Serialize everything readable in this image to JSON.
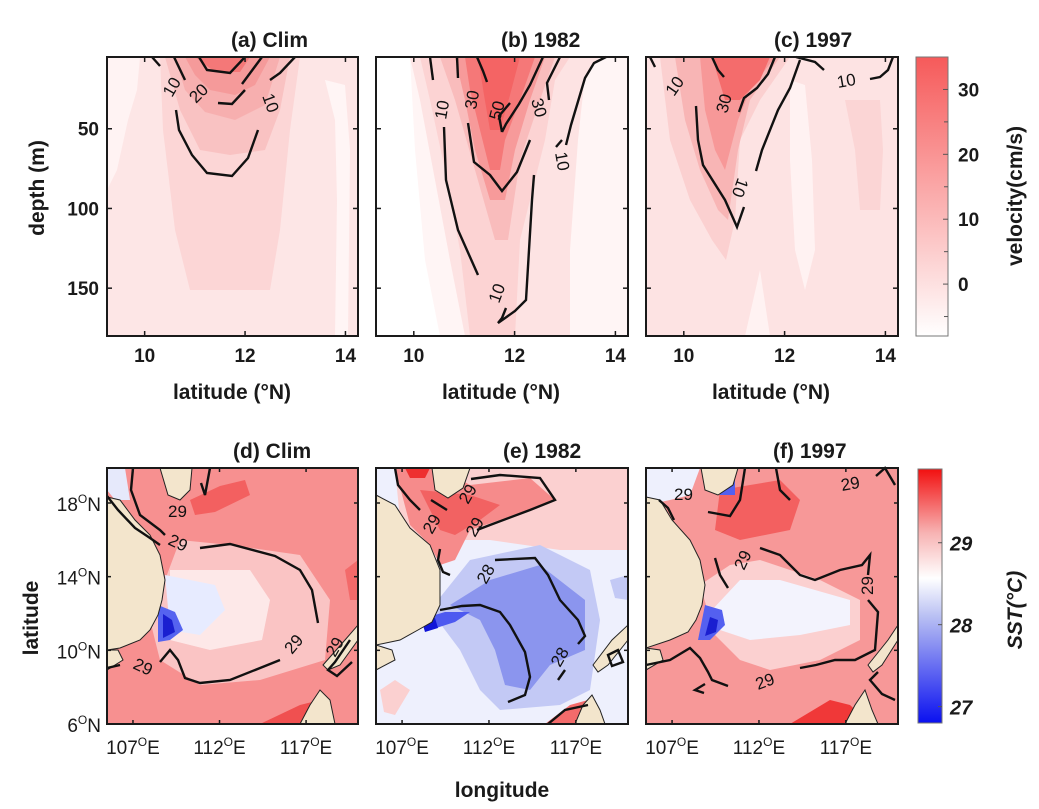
{
  "chart_data": [
    {
      "type": "heatmap",
      "panel": "a",
      "title": "(a) Clim",
      "xlabel": "latitude (°N)",
      "ylabel": "depth (m)",
      "xlim": [
        9.25,
        14.25
      ],
      "ylim": [
        180,
        5
      ],
      "xticks": [
        "10",
        "12",
        "14"
      ],
      "yticks": [
        "50",
        "100",
        "150"
      ],
      "variable": "velocity(cm/s)",
      "contour_levels": [
        10,
        20
      ],
      "contour_labels": [
        "10",
        "20",
        "10"
      ],
      "max_core": {
        "latitude": 11.6,
        "depth": 5,
        "value": 25
      }
    },
    {
      "type": "heatmap",
      "panel": "b",
      "title": "(b) 1982",
      "xlabel": "latitude (°N)",
      "xlim": [
        9.25,
        14.25
      ],
      "ylim": [
        180,
        5
      ],
      "xticks": [
        "10",
        "12",
        "14"
      ],
      "variable": "velocity(cm/s)",
      "contour_levels": [
        10,
        30,
        50
      ],
      "contour_labels": [
        "10",
        "30",
        "50",
        "30",
        "10",
        "10"
      ],
      "max_core": {
        "latitude": 11.8,
        "depth": 40,
        "value": 55
      }
    },
    {
      "type": "heatmap",
      "panel": "c",
      "title": "(c) 1997",
      "xlabel": "latitude (°N)",
      "xlim": [
        9.25,
        14.25
      ],
      "ylim": [
        180,
        5
      ],
      "xticks": [
        "10",
        "12",
        "14"
      ],
      "variable": "velocity(cm/s)",
      "contour_levels": [
        10,
        30
      ],
      "contour_labels": [
        "10",
        "30",
        "10",
        "10"
      ],
      "max_core": {
        "latitude": 10.8,
        "depth": 15,
        "value": 35
      }
    },
    {
      "type": "heatmap",
      "panel": "d",
      "title": "(d) Clim",
      "xlabel": "",
      "ylabel": "latitude",
      "xlim": [
        105.5,
        120
      ],
      "ylim": [
        6,
        19.9
      ],
      "xticks": [
        "107",
        "112",
        "117"
      ],
      "yticks": [
        "18",
        "14",
        "10",
        "6"
      ],
      "variable": "SST(°C)",
      "contour_levels": [
        29
      ],
      "contour_labels": [
        "29",
        "29",
        "29",
        "29",
        "29"
      ]
    },
    {
      "type": "heatmap",
      "panel": "e",
      "title": "(e) 1982",
      "xlabel": "longitude",
      "xlim": [
        105.5,
        120
      ],
      "ylim": [
        6,
        19.9
      ],
      "xticks": [
        "107",
        "112",
        "117"
      ],
      "variable": "SST(°C)",
      "contour_levels": [
        28,
        29
      ],
      "contour_labels": [
        "29",
        "29",
        "29",
        "28",
        "28"
      ]
    },
    {
      "type": "heatmap",
      "panel": "f",
      "title": "(f) 1997",
      "xlabel": "",
      "xlim": [
        105.5,
        120
      ],
      "ylim": [
        6,
        19.9
      ],
      "xticks": [
        "107",
        "112",
        "117"
      ],
      "variable": "SST(°C)",
      "contour_levels": [
        29
      ],
      "contour_labels": [
        "29",
        "29",
        "29",
        "29",
        "29"
      ]
    }
  ],
  "colorbars": {
    "velocity": {
      "label": "velocity(cm/s)",
      "range": [
        -8,
        35
      ],
      "ticks": [
        "30",
        "20",
        "10",
        "0"
      ],
      "tick_values": [
        30,
        20,
        10,
        0
      ],
      "minor_tick_values": [
        25,
        15,
        5,
        -5
      ],
      "color_low": "#ffffff",
      "color_high": "#f65a5a"
    },
    "sst": {
      "label": "SST(°C)",
      "range": [
        26.8,
        29.9
      ],
      "ticks": [
        "29",
        "28",
        "27"
      ],
      "tick_values": [
        29,
        28,
        27
      ],
      "color_low": "#0a10f0",
      "color_mid": "#ffffff",
      "color_high": "#f21010"
    }
  },
  "axis_text": {
    "depth_label": "depth (m)",
    "lat_label": "latitude (°N)",
    "map_ylabel": "latitude",
    "map_xlabel": "longitude",
    "lon_ticks": [
      "107",
      "112",
      "117"
    ],
    "lon_suffix": "E",
    "lat_ticks": [
      "18",
      "14",
      "10",
      "6"
    ],
    "lat_suffix": "N",
    "degree_mark": "O"
  },
  "colors": {
    "land": "#f3e5cc",
    "contour": "#111111",
    "frame": "#1a1a1a"
  }
}
